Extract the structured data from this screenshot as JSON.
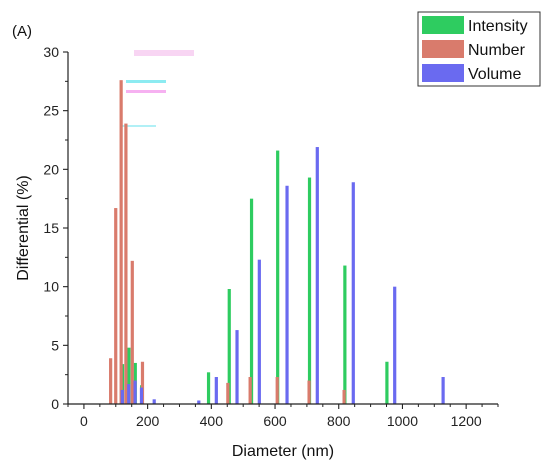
{
  "chart_data": {
    "type": "bar",
    "panel_label": "(A)",
    "xlabel": "Diameter (nm)",
    "ylabel": "Differential (%)",
    "xlim": [
      -50,
      1300
    ],
    "ylim": [
      0,
      30
    ],
    "xticks": [
      0,
      200,
      400,
      600,
      800,
      1000,
      1200
    ],
    "yticks": [
      0,
      5,
      10,
      15,
      20,
      25,
      30
    ],
    "grid": false,
    "legend_position": "top-right",
    "series": [
      {
        "name": "Intensity",
        "color": "#2ecc60",
        "x": [
          120,
          140,
          160,
          180,
          390,
          455,
          525,
          607,
          707,
          818,
          950
        ],
        "values": [
          3.4,
          4.8,
          3.5,
          1.6,
          2.7,
          9.8,
          17.5,
          21.6,
          19.3,
          11.8,
          3.6
        ]
      },
      {
        "name": "Number",
        "color": "#d97b6c",
        "x": [
          92,
          108,
          125,
          140,
          160,
          192,
          460,
          530,
          615,
          715,
          825
        ],
        "values": [
          3.9,
          16.7,
          27.6,
          23.9,
          12.2,
          3.6,
          1.8,
          2.3,
          2.3,
          2.0,
          1.2
        ]
      },
      {
        "name": "Volume",
        "color": "#6a6af0",
        "x": [
          110,
          130,
          150,
          170,
          210,
          350,
          405,
          470,
          540,
          627,
          722,
          835,
          965,
          1117
        ],
        "values": [
          1.2,
          1.7,
          2.0,
          1.4,
          0.4,
          0.3,
          2.3,
          6.3,
          12.3,
          18.6,
          21.9,
          18.9,
          10.0,
          2.3
        ]
      }
    ]
  }
}
